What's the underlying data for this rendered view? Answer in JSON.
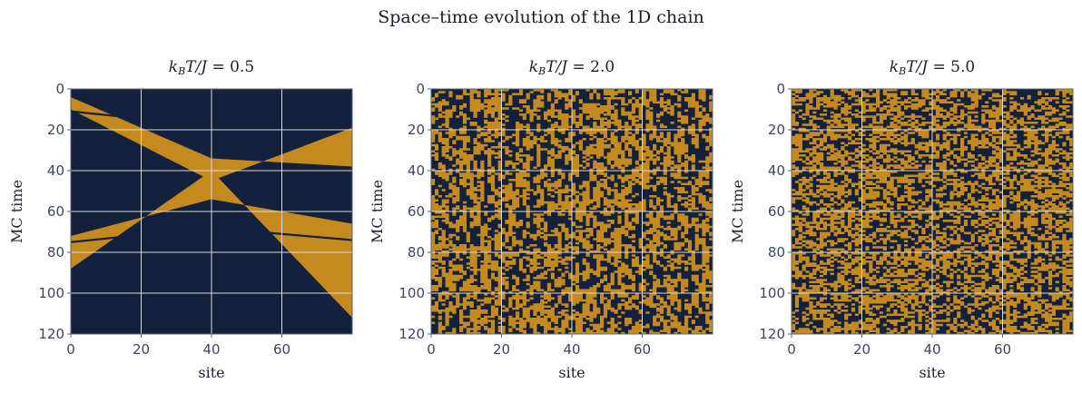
{
  "figure": {
    "suptitle": "Space–time evolution of the 1D chain"
  },
  "colors": {
    "spin_up": "#c58a1e",
    "spin_down": "#13213d",
    "grid": "#d9d9d9",
    "axis": "#5a6478",
    "tick_label": "#3d4762"
  },
  "chart_data": [
    {
      "type": "heatmap",
      "title": "k_B T/J = 0.5",
      "title_parts": {
        "k": "k",
        "sub": "B",
        "rest": "T/J = ",
        "value": "0.5"
      },
      "xlabel": "site",
      "ylabel": "MC time",
      "xlim": [
        0,
        80
      ],
      "ylim": [
        120,
        0
      ],
      "xticks": [
        0,
        20,
        40,
        60
      ],
      "yticks": [
        0,
        20,
        40,
        60,
        80,
        100,
        120
      ],
      "grid": true,
      "n_sites": 80,
      "n_steps": 121,
      "pattern": "domains",
      "domains": [
        {
          "state": "down",
          "t_start": 0,
          "t_end": 4
        },
        {
          "state": "up",
          "t_start": 4,
          "t_end": 32,
          "left_edge": [
            4,
            34,
            38
          ],
          "right_edge": [
            10,
            45,
            19
          ]
        },
        {
          "state": "down",
          "t_start": 32,
          "t_end": 70
        },
        {
          "state": "up",
          "t_start": 70,
          "t_end": 110,
          "left_edge": [
            72,
            54,
            66
          ],
          "right_edge": [
            88,
            40,
            112
          ]
        },
        {
          "state": "down",
          "t_start": 110,
          "t_end": 121
        }
      ],
      "defect_lines": [
        {
          "t_left": 11,
          "t_mid": 18,
          "t_right": 12
        },
        {
          "t_left": 75,
          "t_mid": 68,
          "t_right": 74
        }
      ]
    },
    {
      "type": "heatmap",
      "title": "k_B T/J = 2.0",
      "title_parts": {
        "k": "k",
        "sub": "B",
        "rest": "T/J = ",
        "value": "2.0"
      },
      "xlabel": "site",
      "ylabel": "MC time",
      "xlim": [
        0,
        80
      ],
      "ylim": [
        120,
        0
      ],
      "xticks": [
        0,
        20,
        40,
        60
      ],
      "yticks": [
        0,
        20,
        40,
        60,
        80,
        100,
        120
      ],
      "grid": true,
      "n_sites": 80,
      "n_steps": 121,
      "pattern": "random",
      "flip_probability": 0.3,
      "seed": 20
    },
    {
      "type": "heatmap",
      "title": "k_B T/J = 5.0",
      "title_parts": {
        "k": "k",
        "sub": "B",
        "rest": "T/J = ",
        "value": "5.0"
      },
      "xlabel": "site",
      "ylabel": "MC time",
      "xlim": [
        0,
        80
      ],
      "ylim": [
        120,
        0
      ],
      "xticks": [
        0,
        20,
        40,
        60
      ],
      "yticks": [
        0,
        20,
        40,
        60,
        80,
        100,
        120
      ],
      "grid": true,
      "n_sites": 80,
      "n_steps": 121,
      "pattern": "random",
      "flip_probability": 0.45,
      "seed": 50
    }
  ]
}
